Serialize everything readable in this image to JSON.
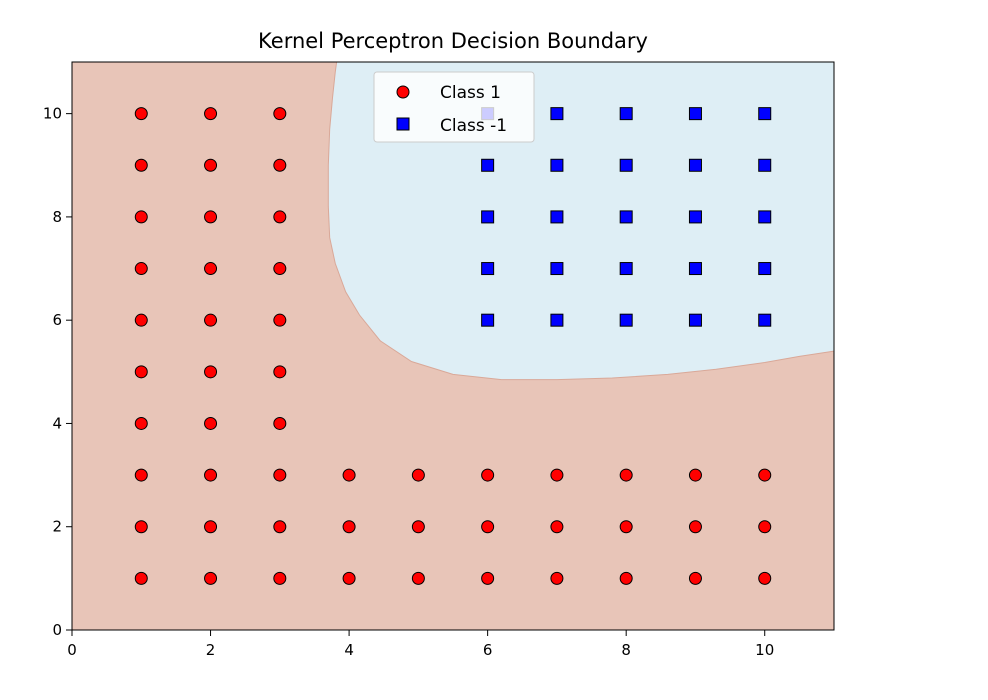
{
  "chart_data": {
    "type": "scatter",
    "title": "Kernel Perceptron Decision Boundary",
    "xlabel": "",
    "ylabel": "",
    "xlim": [
      0,
      11
    ],
    "ylim": [
      0,
      11
    ],
    "x_ticks": [
      "0",
      "2",
      "4",
      "6",
      "8",
      "10"
    ],
    "y_ticks": [
      "0",
      "2",
      "4",
      "6",
      "8",
      "10"
    ],
    "x_tick_values": [
      0,
      2,
      4,
      6,
      8,
      10
    ],
    "y_tick_values": [
      0,
      2,
      4,
      6,
      8,
      10
    ],
    "grid": false,
    "legend_position": "top-center",
    "region_colors": {
      "class_1": "#e8c5b8",
      "class_-1": "#deeef5"
    },
    "decision_boundary": [
      [
        3.82,
        11
      ],
      [
        3.8,
        10.8
      ],
      [
        3.76,
        10.3
      ],
      [
        3.72,
        9.7
      ],
      [
        3.7,
        9.0
      ],
      [
        3.7,
        8.2
      ],
      [
        3.72,
        7.6
      ],
      [
        3.8,
        7.1
      ],
      [
        3.95,
        6.55
      ],
      [
        4.15,
        6.1
      ],
      [
        4.45,
        5.6
      ],
      [
        4.9,
        5.2
      ],
      [
        5.5,
        4.95
      ],
      [
        6.2,
        4.85
      ],
      [
        7.0,
        4.85
      ],
      [
        7.8,
        4.88
      ],
      [
        8.6,
        4.95
      ],
      [
        9.3,
        5.05
      ],
      [
        10.0,
        5.18
      ],
      [
        10.5,
        5.3
      ],
      [
        11,
        5.4
      ]
    ],
    "series": [
      {
        "name": "Class 1",
        "marker": "circle",
        "color": "#ff0000",
        "points": [
          [
            1,
            1
          ],
          [
            1,
            2
          ],
          [
            1,
            3
          ],
          [
            1,
            4
          ],
          [
            1,
            5
          ],
          [
            1,
            6
          ],
          [
            1,
            7
          ],
          [
            1,
            8
          ],
          [
            1,
            9
          ],
          [
            1,
            10
          ],
          [
            2,
            1
          ],
          [
            2,
            2
          ],
          [
            2,
            3
          ],
          [
            2,
            4
          ],
          [
            2,
            5
          ],
          [
            2,
            6
          ],
          [
            2,
            7
          ],
          [
            2,
            8
          ],
          [
            2,
            9
          ],
          [
            2,
            10
          ],
          [
            3,
            1
          ],
          [
            3,
            2
          ],
          [
            3,
            3
          ],
          [
            3,
            4
          ],
          [
            3,
            5
          ],
          [
            3,
            6
          ],
          [
            3,
            7
          ],
          [
            3,
            8
          ],
          [
            3,
            9
          ],
          [
            3,
            10
          ],
          [
            4,
            1
          ],
          [
            4,
            2
          ],
          [
            4,
            3
          ],
          [
            5,
            1
          ],
          [
            5,
            2
          ],
          [
            5,
            3
          ],
          [
            6,
            1
          ],
          [
            6,
            2
          ],
          [
            6,
            3
          ],
          [
            7,
            1
          ],
          [
            7,
            2
          ],
          [
            7,
            3
          ],
          [
            8,
            1
          ],
          [
            8,
            2
          ],
          [
            8,
            3
          ],
          [
            9,
            1
          ],
          [
            9,
            2
          ],
          [
            9,
            3
          ],
          [
            10,
            1
          ],
          [
            10,
            2
          ],
          [
            10,
            3
          ]
        ]
      },
      {
        "name": "Class -1",
        "marker": "square",
        "color": "#0000ff",
        "points": [
          [
            6,
            6
          ],
          [
            6,
            7
          ],
          [
            6,
            8
          ],
          [
            6,
            9
          ],
          [
            6,
            10
          ],
          [
            7,
            6
          ],
          [
            7,
            7
          ],
          [
            7,
            8
          ],
          [
            7,
            9
          ],
          [
            7,
            10
          ],
          [
            8,
            6
          ],
          [
            8,
            7
          ],
          [
            8,
            8
          ],
          [
            8,
            9
          ],
          [
            8,
            10
          ],
          [
            9,
            6
          ],
          [
            9,
            7
          ],
          [
            9,
            8
          ],
          [
            9,
            9
          ],
          [
            9,
            10
          ],
          [
            10,
            6
          ],
          [
            10,
            7
          ],
          [
            10,
            8
          ],
          [
            10,
            9
          ],
          [
            10,
            10
          ]
        ]
      }
    ]
  }
}
